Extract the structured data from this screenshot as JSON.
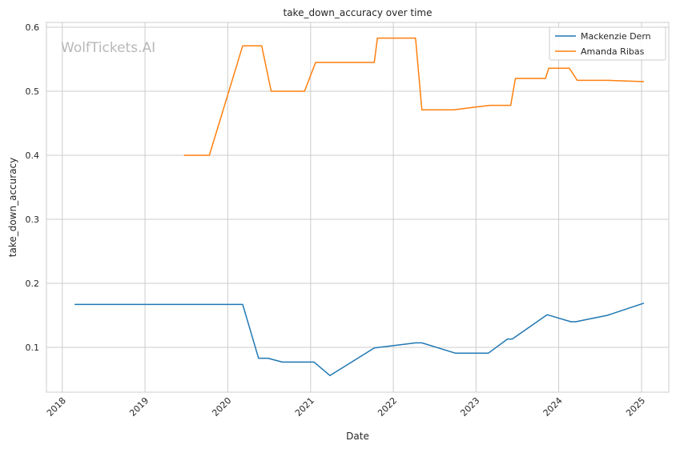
{
  "chart_data": {
    "type": "line",
    "title": "take_down_accuracy over time",
    "xlabel": "Date",
    "ylabel": "take_down_accuracy",
    "watermark": "WolfTickets.AI",
    "xlim": [
      "2017-10-23",
      "2025-05-01"
    ],
    "ylim": [
      0.03,
      0.6075
    ],
    "x_ticks": [
      "2018-01-01",
      "2019-01-01",
      "2020-01-01",
      "2021-01-01",
      "2022-01-01",
      "2023-01-01",
      "2024-01-01",
      "2025-01-01"
    ],
    "x_tick_labels": [
      "2018",
      "2019",
      "2020",
      "2021",
      "2022",
      "2023",
      "2024",
      "2025"
    ],
    "y_ticks": [
      0.1,
      0.2,
      0.3,
      0.4,
      0.5,
      0.6
    ],
    "y_tick_labels": [
      "0.1",
      "0.2",
      "0.3",
      "0.4",
      "0.5",
      "0.6"
    ],
    "grid": true,
    "legend_position": "top-right",
    "series": [
      {
        "name": "Mackenzie Dern",
        "color": "#1f77b4",
        "x": [
          "2018-02-24",
          "2020-03-07",
          "2020-05-16",
          "2020-06-27",
          "2020-08-29",
          "2020-10-17",
          "2021-01-16",
          "2021-03-27",
          "2021-10-09",
          "2021-10-30",
          "2022-04-09",
          "2022-05-07",
          "2022-10-01",
          "2023-02-25",
          "2023-05-20",
          "2023-06-10",
          "2023-11-11",
          "2024-02-24",
          "2024-03-16",
          "2024-08-03",
          "2025-01-11"
        ],
        "values": [
          0.167,
          0.167,
          0.083,
          0.083,
          0.077,
          0.077,
          0.077,
          0.056,
          0.099,
          0.1,
          0.107,
          0.107,
          0.091,
          0.091,
          0.113,
          0.113,
          0.151,
          0.14,
          0.14,
          0.15,
          0.169
        ]
      },
      {
        "name": "Amanda Ribas",
        "color": "#ff7f0e",
        "x": [
          "2019-06-22",
          "2019-10-12",
          "2020-03-07",
          "2020-05-30",
          "2020-07-11",
          "2020-12-05",
          "2021-01-23",
          "2021-10-09",
          "2021-10-23",
          "2022-04-09",
          "2022-05-07",
          "2022-09-24",
          "2023-01-14",
          "2023-03-04",
          "2023-06-03",
          "2023-06-24",
          "2023-11-04",
          "2023-11-18",
          "2024-02-17",
          "2024-03-23",
          "2024-08-10",
          "2025-01-11"
        ],
        "values": [
          0.4,
          0.4,
          0.571,
          0.571,
          0.5,
          0.5,
          0.545,
          0.545,
          0.583,
          0.583,
          0.471,
          0.471,
          0.476,
          0.478,
          0.478,
          0.52,
          0.52,
          0.536,
          0.536,
          0.517,
          0.517,
          0.515
        ]
      }
    ]
  }
}
